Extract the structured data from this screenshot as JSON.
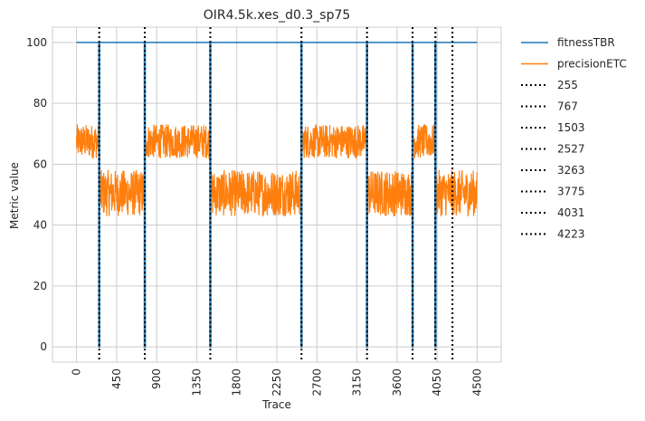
{
  "chart_data": {
    "type": "line",
    "title": "OIR4.5k.xes_d0.3_sp75",
    "xlabel": "Trace",
    "ylabel": "Metric value",
    "xlim": [
      -270,
      4770
    ],
    "ylim": [
      -5,
      105
    ],
    "x_ticks": [
      0,
      450,
      900,
      1350,
      1800,
      2250,
      2700,
      3150,
      3600,
      4050,
      4500
    ],
    "y_ticks": [
      0,
      20,
      40,
      60,
      80,
      100
    ],
    "grid": true,
    "legend_position": "outside-upper-right",
    "series": [
      {
        "name": "fitnessTBR",
        "color": "#1f77b4",
        "segments": [
          {
            "x": [
              0,
              4500
            ],
            "baseline": 100
          },
          {
            "x": [
              250,
              260
            ],
            "value": 0
          },
          {
            "x": [
              762,
              772
            ],
            "value": 0
          },
          {
            "x": [
              1498,
              1508
            ],
            "value": 0
          },
          {
            "x": [
              2522,
              2532
            ],
            "value": 0
          },
          {
            "x": [
              3258,
              3268
            ],
            "value": 0
          },
          {
            "x": [
              3770,
              3780
            ],
            "value": 0
          },
          {
            "x": [
              4026,
              4036
            ],
            "value": 0
          }
        ]
      },
      {
        "name": "precisionETC",
        "color": "#ff7f0e",
        "segments": [
          {
            "x": [
              0,
              255
            ],
            "range": [
              62,
              73
            ]
          },
          {
            "x": [
              255,
              767
            ],
            "range": [
              43,
              58
            ]
          },
          {
            "x": [
              767,
              1503
            ],
            "range": [
              62,
              73
            ]
          },
          {
            "x": [
              1503,
              2527
            ],
            "range": [
              43,
              58
            ]
          },
          {
            "x": [
              2527,
              3263
            ],
            "range": [
              62,
              73
            ]
          },
          {
            "x": [
              3263,
              3775
            ],
            "range": [
              43,
              58
            ]
          },
          {
            "x": [
              3775,
              4031
            ],
            "range": [
              62,
              73
            ]
          },
          {
            "x": [
              4031,
              4500
            ],
            "range": [
              43,
              58
            ]
          }
        ],
        "drops_to_zero_at": [
          255,
          767,
          1503,
          2527,
          3263,
          3775,
          4031
        ]
      }
    ],
    "vlines": [
      {
        "label": "255",
        "x": 255
      },
      {
        "label": "767",
        "x": 767
      },
      {
        "label": "1503",
        "x": 1503
      },
      {
        "label": "2527",
        "x": 2527
      },
      {
        "label": "3263",
        "x": 3263
      },
      {
        "label": "3775",
        "x": 3775
      },
      {
        "label": "4031",
        "x": 4031
      },
      {
        "label": "4223",
        "x": 4223
      }
    ]
  },
  "colors": {
    "fitness": "#1f77b4",
    "precision": "#ff7f0e",
    "vline": "#000000",
    "grid": "#cccccc"
  }
}
